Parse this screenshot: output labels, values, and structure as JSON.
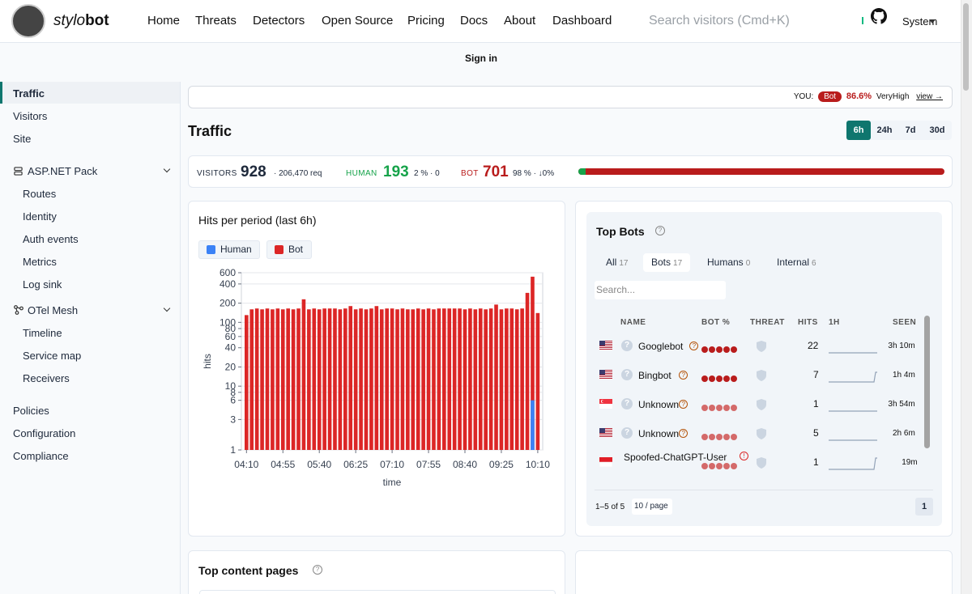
{
  "header": {
    "logo_italic": "stylo",
    "logo_bold": "bot",
    "nav": [
      "Home",
      "Threats",
      "Detectors",
      "Open Source",
      "Pricing",
      "Docs",
      "About",
      "Dashboard"
    ],
    "search_placeholder": "Search visitors (Cmd+K)",
    "theme_label": "System",
    "signin": "Sign in"
  },
  "sidebar": {
    "items": [
      "Traffic",
      "Visitors",
      "Site"
    ],
    "aspnet": {
      "label": "ASP.NET Pack",
      "children": [
        "Routes",
        "Identity",
        "Auth events",
        "Metrics",
        "Log sink"
      ]
    },
    "otel": {
      "label": "OTel Mesh",
      "children": [
        "Timeline",
        "Service map",
        "Receivers"
      ]
    },
    "bottom": [
      "Policies",
      "Configuration",
      "Compliance"
    ]
  },
  "you": {
    "label": "YOU:",
    "badge": "Bot",
    "pct": "86.6%",
    "level": "VeryHigh",
    "link": "view →"
  },
  "page_title": "Traffic",
  "periods": [
    "6h",
    "24h",
    "7d",
    "30d"
  ],
  "active_period": "6h",
  "stats": {
    "visitors_label": "VISITORS",
    "visitors": "928",
    "requests": "· 206,470 req",
    "human_label": "HUMAN",
    "human": "193",
    "human_meta": "2 % · 0",
    "bot_label": "BOT",
    "bot": "701",
    "bot_meta": "98 % · ↓0%",
    "human_fraction": 0.02
  },
  "chart_card": {
    "title": "Hits per period (last 6h)",
    "legend": [
      {
        "name": "Human",
        "color": "#3b82f6"
      },
      {
        "name": "Bot",
        "color": "#dc2626"
      }
    ]
  },
  "chart_data": {
    "type": "bar",
    "title": "Hits per period (last 6h)",
    "xlabel": "time",
    "ylabel": "hits",
    "y_scale": "log",
    "ylim": [
      1,
      600
    ],
    "y_ticks": [
      1,
      3,
      6,
      8,
      10,
      20,
      40,
      60,
      80,
      100,
      200,
      400,
      600
    ],
    "x_ticks": [
      "04:10",
      "04:55",
      "05:40",
      "06:25",
      "07:10",
      "07:55",
      "08:40",
      "09:25",
      "10:10"
    ],
    "series": [
      {
        "name": "Bot",
        "color": "#dc2626",
        "values": [
          130,
          160,
          165,
          160,
          165,
          160,
          165,
          160,
          165,
          160,
          165,
          230,
          160,
          165,
          160,
          165,
          165,
          165,
          160,
          165,
          180,
          160,
          165,
          160,
          165,
          180,
          160,
          165,
          165,
          160,
          165,
          160,
          160,
          165,
          160,
          165,
          160,
          165,
          165,
          165,
          165,
          165,
          160,
          165,
          160,
          165,
          160,
          165,
          190,
          160,
          165,
          165,
          160,
          165,
          290,
          520,
          140
        ]
      },
      {
        "name": "Human",
        "color": "#3b82f6",
        "index": 55,
        "value": 6
      }
    ]
  },
  "top_bots": {
    "title": "Top Bots",
    "tabs": [
      {
        "label": "All",
        "count": "17"
      },
      {
        "label": "Bots",
        "count": "17"
      },
      {
        "label": "Humans",
        "count": "0"
      },
      {
        "label": "Internal",
        "count": "6"
      }
    ],
    "active_tab": "Bots",
    "search_placeholder": "Search...",
    "columns": [
      "NAME",
      "BOT %",
      "THREAT",
      "HITS",
      "1H",
      "SEEN"
    ],
    "rows": [
      {
        "flag": "us",
        "name": "Googlebot",
        "marker": "?",
        "hits": "22",
        "seen": "3h 10m",
        "dot_color": "#b91c1c",
        "icon_type": "q"
      },
      {
        "flag": "us",
        "name": "Bingbot",
        "marker": "?",
        "hits": "7",
        "seen": "1h 4m",
        "dot_color": "#b91c1c",
        "icon_type": "q"
      },
      {
        "flag": "sg",
        "name": "Unknown",
        "marker": "?",
        "hits": "1",
        "seen": "3h 54m",
        "dot_color": "#d46a6a",
        "icon_type": "q"
      },
      {
        "flag": "us",
        "name": "Unknown",
        "marker": "?",
        "hits": "5",
        "seen": "2h 6m",
        "dot_color": "#d46a6a",
        "icon_type": "q"
      },
      {
        "flag": "id",
        "name": "Spoofed-ChatGPT-User",
        "marker": "!",
        "hits": "1",
        "seen": "19m",
        "dot_color": "#d46a6a",
        "icon_type": "none"
      }
    ],
    "pager_text": "1–5 of 5",
    "page_size": "10 / page",
    "page": "1"
  },
  "top_pages": {
    "title": "Top content pages"
  },
  "colors": {
    "accent": "#0f766e",
    "bot": "#b91c1c",
    "human": "#16a34a"
  }
}
